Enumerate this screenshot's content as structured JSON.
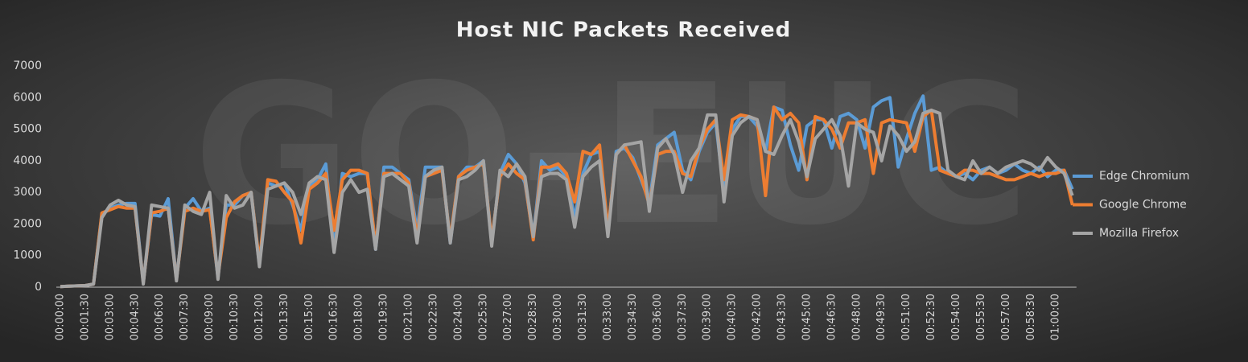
{
  "chart_data": {
    "type": "line",
    "title": "Host NIC Packets Received",
    "watermark": "GO-EUC",
    "categories": [
      "00:00:00",
      null,
      null,
      "00:01:30",
      null,
      null,
      "00:03:00",
      null,
      null,
      "00:04:30",
      null,
      null,
      "00:06:00",
      null,
      null,
      "00:07:30",
      null,
      null,
      "00:09:00",
      null,
      null,
      "00:10:30",
      null,
      null,
      "00:12:00",
      null,
      null,
      "00:13:30",
      null,
      null,
      "00:15:00",
      null,
      null,
      "00:16:30",
      null,
      null,
      "00:18:00",
      null,
      null,
      "00:19:30",
      null,
      null,
      "00:21:00",
      null,
      null,
      "00:22:30",
      null,
      null,
      "00:24:00",
      null,
      null,
      "00:25:30",
      null,
      null,
      "00:27:00",
      null,
      null,
      "00:28:30",
      null,
      null,
      "00:30:00",
      null,
      null,
      "00:31:30",
      null,
      null,
      "00:33:00",
      null,
      null,
      "00:34:30",
      null,
      null,
      "00:36:00",
      null,
      null,
      "00:37:30",
      null,
      null,
      "00:39:00",
      null,
      null,
      "00:40:30",
      null,
      null,
      "00:42:00",
      null,
      null,
      "00:43:30",
      null,
      null,
      "00:45:00",
      null,
      null,
      "00:46:30",
      null,
      null,
      "00:48:00",
      null,
      null,
      "00:49:30",
      null,
      null,
      "00:51:00",
      null,
      null,
      "00:52:30",
      null,
      null,
      "00:54:00",
      null,
      null,
      "00:55:30",
      null,
      null,
      "00:57:00",
      null,
      null,
      "00:58:30",
      null,
      null,
      "01:00:00",
      null,
      null
    ],
    "series": [
      {
        "name": "Edge Chromium",
        "color": "#5b9bd5",
        "values": [
          20,
          30,
          40,
          50,
          100,
          2300,
          2500,
          2600,
          2650,
          2650,
          150,
          2300,
          2250,
          2800,
          250,
          2500,
          2800,
          2400,
          2500,
          300,
          2600,
          2600,
          2900,
          3000,
          700,
          3300,
          3200,
          3300,
          2600,
          1800,
          3200,
          3400,
          3900,
          1200,
          3600,
          3500,
          3600,
          3600,
          1200,
          3800,
          3800,
          3600,
          3400,
          1800,
          3800,
          3800,
          3800,
          1400,
          3500,
          3800,
          3800,
          4000,
          1400,
          3600,
          4200,
          3900,
          3300,
          1600,
          4000,
          3700,
          3800,
          3500,
          2200,
          3600,
          4200,
          4300,
          1700,
          4300,
          4400,
          4100,
          3400,
          2700,
          4500,
          4700,
          4900,
          3700,
          3400,
          4300,
          4900,
          5200,
          3000,
          5000,
          5400,
          5400,
          5100,
          4300,
          5700,
          5600,
          4500,
          3700,
          5100,
          5300,
          5300,
          4400,
          5400,
          5500,
          5300,
          4400,
          5700,
          5900,
          6000,
          3800,
          4700,
          5500,
          6050,
          3700,
          3800,
          3600,
          3500,
          3600,
          3400,
          3700,
          3800,
          3600,
          3700,
          3900,
          3700,
          3600,
          3800,
          3500,
          3700,
          3700,
          3100
        ]
      },
      {
        "name": "Google Chrome",
        "color": "#ed7d31",
        "values": [
          20,
          30,
          40,
          50,
          100,
          2350,
          2450,
          2550,
          2500,
          2500,
          150,
          2350,
          2400,
          2500,
          250,
          2400,
          2500,
          2400,
          2450,
          350,
          2200,
          2700,
          2900,
          3000,
          800,
          3400,
          3350,
          3000,
          2700,
          1400,
          3100,
          3300,
          3600,
          1800,
          3400,
          3700,
          3700,
          3600,
          1300,
          3600,
          3600,
          3600,
          3300,
          1600,
          3500,
          3600,
          3700,
          1500,
          3500,
          3700,
          3800,
          3900,
          1500,
          3500,
          3900,
          3600,
          3400,
          1500,
          3800,
          3800,
          3900,
          3600,
          2700,
          4300,
          4200,
          4500,
          1800,
          4200,
          4500,
          4000,
          3500,
          2600,
          4200,
          4300,
          4300,
          3600,
          3500,
          4400,
          5000,
          5300,
          3400,
          5300,
          5450,
          5400,
          5300,
          2900,
          5700,
          5300,
          5500,
          5200,
          3400,
          5400,
          5300,
          5000,
          4400,
          5200,
          5200,
          5300,
          3600,
          5200,
          5300,
          5250,
          5200,
          4300,
          5400,
          5600,
          3700,
          3600,
          3500,
          3700,
          3700,
          3600,
          3600,
          3500,
          3400,
          3400,
          3500,
          3600,
          3500,
          3600,
          3600,
          3700,
          2600
        ]
      },
      {
        "name": "Mozilla Firefox",
        "color": "#a5a5a5",
        "values": [
          20,
          30,
          40,
          50,
          100,
          2200,
          2600,
          2750,
          2600,
          2550,
          100,
          2600,
          2550,
          2500,
          200,
          2600,
          2400,
          2300,
          3000,
          250,
          2900,
          2500,
          2600,
          3000,
          650,
          3100,
          3200,
          3300,
          3000,
          2300,
          3300,
          3500,
          3400,
          1100,
          3000,
          3400,
          3000,
          3100,
          1200,
          3500,
          3600,
          3400,
          3200,
          1400,
          3500,
          3700,
          3800,
          1400,
          3400,
          3500,
          3700,
          4000,
          1300,
          3700,
          3500,
          3900,
          3500,
          1600,
          3500,
          3600,
          3600,
          3400,
          1900,
          3500,
          3800,
          4000,
          1600,
          4200,
          4500,
          4550,
          4600,
          2400,
          4400,
          4700,
          4200,
          3000,
          4000,
          4400,
          5450,
          5450,
          2700,
          4800,
          5200,
          5400,
          5300,
          4300,
          4200,
          4800,
          5300,
          4600,
          3500,
          4700,
          5000,
          5300,
          4800,
          3200,
          5200,
          5000,
          4900,
          4000,
          5100,
          4800,
          4300,
          4600,
          5500,
          5600,
          5500,
          3700,
          3500,
          3400,
          4000,
          3600,
          3800,
          3600,
          3800,
          3900,
          4000,
          3900,
          3700,
          4100,
          3800,
          3600,
          2900
        ]
      }
    ],
    "ylim": [
      0,
      7000
    ],
    "yticks": [
      0,
      1000,
      2000,
      3000,
      4000,
      5000,
      6000,
      7000
    ],
    "grid": false,
    "legend": "right"
  }
}
